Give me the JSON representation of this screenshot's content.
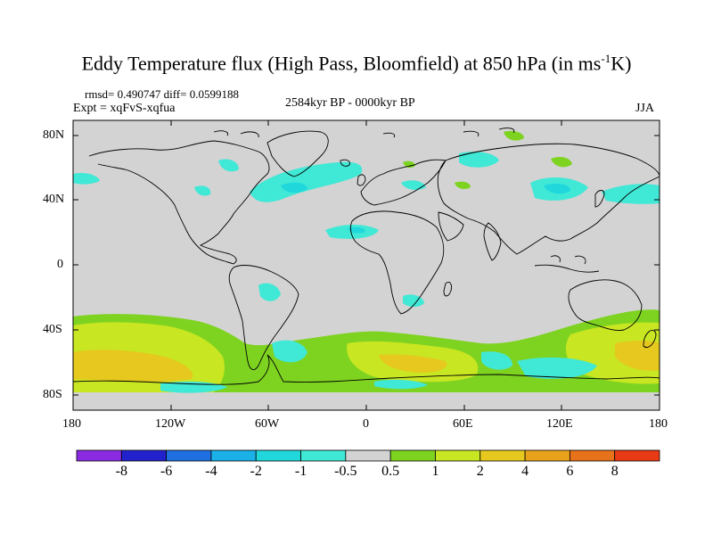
{
  "title": {
    "main": "Eddy Temperature flux (High Pass, Bloomfield) at 850 hPa (in ms",
    "sup": "-1",
    "end": "K)"
  },
  "stats": "rmsd= 0.490747 diff= 0.0599188",
  "experiment": "Expt = xqFvS-xqfua",
  "period": "2584kyr BP - 0000kyr BP",
  "season": "JJA",
  "lat_labels": [
    "80N",
    "40N",
    "0",
    "40S",
    "80S"
  ],
  "lon_labels": [
    "180",
    "120W",
    "60W",
    "0",
    "60E",
    "120E",
    "180"
  ],
  "colorbar": {
    "labels": [
      "-8",
      "-6",
      "-4",
      "-2",
      "-1",
      "-0.5",
      "0.5",
      "1",
      "2",
      "4",
      "6",
      "8"
    ],
    "colors": [
      "#8a2be2",
      "#2222cc",
      "#1f6fe0",
      "#1ab0e8",
      "#20d8dc",
      "#40e8d6",
      "#d3d3d3",
      "#7ed321",
      "#c8e622",
      "#e6c81e",
      "#e8a21a",
      "#e8721a",
      "#e83a14"
    ]
  },
  "palette": {
    "background": "#d3d3d3",
    "coast": "#000000"
  }
}
